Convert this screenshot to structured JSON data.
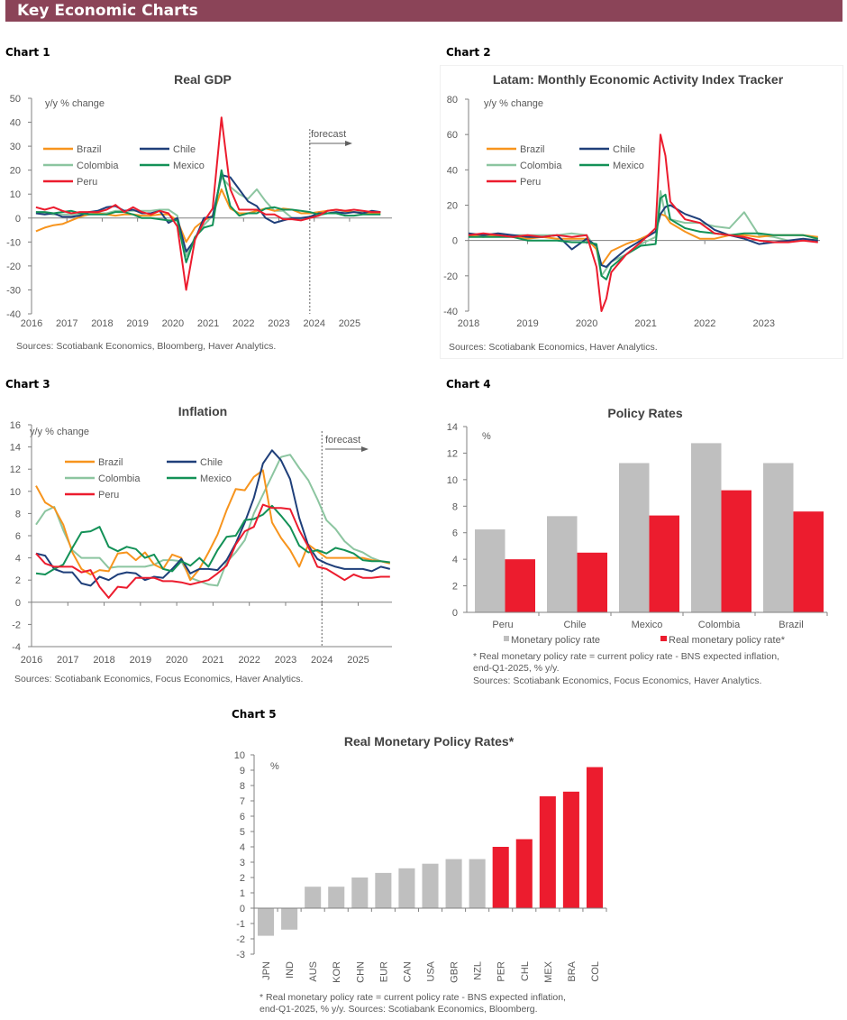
{
  "header": {
    "title": "Key Economic Charts",
    "color": "#8B4458"
  },
  "colors": {
    "Brazil": "#F7941D",
    "Chile": "#1F3F7A",
    "Colombia": "#8CC5A0",
    "Mexico": "#139157",
    "Peru": "#EC1C2E",
    "grey_bar": "#BFBFBF",
    "red_bar": "#EC1C2E"
  },
  "chart_labels": [
    "Chart 1",
    "Chart 2",
    "Chart 3",
    "Chart 4",
    "Chart 5"
  ],
  "chart_data": [
    {
      "type": "line",
      "title": "Real GDP",
      "ylabel": "y/y % change",
      "ylim": [
        -40,
        50
      ],
      "yticks": [
        "50",
        "40",
        "30",
        "20",
        "10",
        "0",
        "-10",
        "-20",
        "-30",
        "-40"
      ],
      "xticks": [
        "2016",
        "2017",
        "2018",
        "2019",
        "2020",
        "2021",
        "2022",
        "2023",
        "2024",
        "2025"
      ],
      "forecast_label": "forecast",
      "forecast_start": "2023-Q4",
      "source": "Sources: Scotiabank Economics, Bloomberg, Haver Analytics.",
      "x": [
        "2016-Q1",
        "2016-Q2",
        "2016-Q3",
        "2016-Q4",
        "2017-Q1",
        "2017-Q2",
        "2017-Q3",
        "2017-Q4",
        "2018-Q1",
        "2018-Q2",
        "2018-Q3",
        "2018-Q4",
        "2019-Q1",
        "2019-Q2",
        "2019-Q3",
        "2019-Q4",
        "2020-Q1",
        "2020-Q2",
        "2020-Q3",
        "2020-Q4",
        "2021-Q1",
        "2021-Q2",
        "2021-Q3",
        "2021-Q4",
        "2022-Q1",
        "2022-Q2",
        "2022-Q3",
        "2022-Q4",
        "2023-Q1",
        "2023-Q2",
        "2023-Q3",
        "2023-Q4",
        "2024-Q1",
        "2024-Q2",
        "2024-Q3",
        "2024-Q4",
        "2025-Q1",
        "2025-Q2",
        "2025-Q3",
        "2025-Q4"
      ],
      "series": [
        {
          "name": "Brazil",
          "values": [
            -5.5,
            -4,
            -3,
            -2.5,
            -1,
            0.5,
            1.5,
            2,
            1.5,
            1,
            1.5,
            1.5,
            1,
            1,
            1.5,
            1.5,
            -1,
            -10,
            -4,
            -1,
            1,
            12,
            4,
            2,
            2,
            3,
            4,
            3,
            4,
            3.5,
            2,
            2,
            2.5,
            3,
            3.5,
            3,
            2.5,
            2,
            2,
            2
          ]
        },
        {
          "name": "Chile",
          "values": [
            2,
            1.5,
            2,
            0.5,
            0.5,
            1,
            2.5,
            3,
            4.5,
            5,
            3,
            3.5,
            2,
            2,
            3,
            -2,
            0,
            -14,
            -9,
            0,
            0.5,
            18,
            17,
            12,
            7,
            5,
            0,
            -2,
            -1,
            0,
            0,
            0.5,
            2,
            2,
            2.5,
            2,
            2.5,
            2,
            3,
            2.5
          ]
        },
        {
          "name": "Colombia",
          "values": [
            2.5,
            2,
            1.5,
            1.5,
            1.5,
            1.5,
            2,
            2,
            2,
            3,
            3,
            3,
            3,
            3,
            3.5,
            3.5,
            1,
            -16,
            -8,
            -3,
            1,
            17,
            13,
            10,
            8,
            12,
            7,
            3,
            3,
            0,
            -0.5,
            0.5,
            1,
            2,
            2,
            2.5,
            2.5,
            2.5,
            2.5,
            2.5
          ]
        },
        {
          "name": "Mexico",
          "values": [
            2.5,
            2.5,
            2,
            2.5,
            3,
            2,
            1.5,
            1.5,
            1.5,
            2.5,
            2.5,
            1.5,
            0,
            0,
            -0.5,
            -1,
            -1,
            -18.5,
            -8,
            -4,
            -3,
            20,
            5,
            1,
            2,
            2,
            4,
            4.5,
            3.5,
            3.5,
            3,
            2.5,
            1.5,
            2,
            2,
            1,
            1,
            1.5,
            1.5,
            1.5
          ]
        },
        {
          "name": "Peru",
          "values": [
            4.5,
            3.5,
            4.5,
            3,
            2,
            2.5,
            2.5,
            2.5,
            3.5,
            5.5,
            2.5,
            4.5,
            2.5,
            1.5,
            3,
            2,
            -3.5,
            -30,
            -9,
            -1.5,
            4,
            42,
            12,
            3.5,
            3.5,
            3.5,
            1.5,
            1.5,
            -0.5,
            -0.5,
            -1,
            0,
            1,
            3,
            3.5,
            3,
            3.5,
            3,
            2.5,
            2.5
          ]
        }
      ]
    },
    {
      "type": "line",
      "title": "Latam: Monthly Economic Activity Index Tracker",
      "ylabel": "y/y % change",
      "ylim": [
        -40,
        80
      ],
      "yticks": [
        "80",
        "60",
        "40",
        "20",
        "0",
        "-20",
        "-40"
      ],
      "xticks": [
        "2018",
        "2019",
        "2020",
        "2021",
        "2022",
        "2023"
      ],
      "source": "Sources: Scotiabank Economics, Haver Analytics.",
      "x": [
        "2018-01",
        "2018-04",
        "2018-07",
        "2018-10",
        "2019-01",
        "2019-04",
        "2019-07",
        "2019-10",
        "2020-01",
        "2020-03",
        "2020-04",
        "2020-05",
        "2020-06",
        "2020-09",
        "2020-12",
        "2021-03",
        "2021-04",
        "2021-05",
        "2021-06",
        "2021-09",
        "2021-12",
        "2022-03",
        "2022-06",
        "2022-09",
        "2022-12",
        "2023-03",
        "2023-06",
        "2023-09",
        "2023-12"
      ],
      "series": [
        {
          "name": "Brazil",
          "values": [
            3,
            2,
            3,
            2,
            1,
            2,
            1,
            1,
            1,
            -5,
            -14,
            -10,
            -6,
            -2,
            1,
            5,
            15,
            14,
            10,
            5,
            1,
            1,
            3,
            3,
            2,
            3,
            3,
            3,
            2
          ]
        },
        {
          "name": "Chile",
          "values": [
            4,
            3,
            4,
            3,
            2,
            2,
            3,
            -5,
            1,
            -3,
            -14,
            -15,
            -12,
            -5,
            0,
            5,
            15,
            19,
            20,
            15,
            12,
            6,
            3,
            1,
            -2,
            -1,
            0,
            1,
            0
          ]
        },
        {
          "name": "Colombia",
          "values": [
            2,
            3,
            3,
            3,
            3,
            3,
            3,
            4,
            3,
            -5,
            -20,
            -16,
            -12,
            -8,
            -2,
            2,
            28,
            14,
            12,
            10,
            10,
            8,
            7,
            16,
            3,
            2,
            0,
            0,
            1
          ]
        },
        {
          "name": "Mexico",
          "values": [
            2,
            2,
            2,
            2,
            0,
            0,
            0,
            -1,
            -1,
            -2,
            -20,
            -22,
            -15,
            -8,
            -3,
            -2,
            24,
            26,
            12,
            7,
            5,
            4,
            3,
            4,
            4,
            3,
            3,
            3,
            1
          ]
        },
        {
          "name": "Peru",
          "values": [
            3,
            4,
            3,
            2,
            3,
            2,
            3,
            2,
            3,
            -15,
            -40,
            -33,
            -18,
            -8,
            -1,
            7,
            60,
            48,
            22,
            12,
            10,
            4,
            3,
            2,
            0,
            -1,
            -1,
            0,
            -1
          ]
        }
      ]
    },
    {
      "type": "line",
      "title": "Inflation",
      "ylabel": "y/y % change",
      "ylim": [
        -4,
        16
      ],
      "yticks": [
        "16",
        "14",
        "12",
        "10",
        "8",
        "6",
        "4",
        "2",
        "0",
        "-2",
        "-4"
      ],
      "xticks": [
        "2016",
        "2017",
        "2018",
        "2019",
        "2020",
        "2021",
        "2022",
        "2023",
        "2024",
        "2025"
      ],
      "forecast_label": "forecast",
      "forecast_start": "2024-01",
      "source": "Sources: Scotiabank Economics, Focus Economics, Haver Analytics.",
      "x": [
        "2016-Q1",
        "2016-Q2",
        "2016-Q3",
        "2016-Q4",
        "2017-Q1",
        "2017-Q2",
        "2017-Q3",
        "2017-Q4",
        "2018-Q1",
        "2018-Q2",
        "2018-Q3",
        "2018-Q4",
        "2019-Q1",
        "2019-Q2",
        "2019-Q3",
        "2019-Q4",
        "2020-Q1",
        "2020-Q2",
        "2020-Q3",
        "2020-Q4",
        "2021-Q1",
        "2021-Q2",
        "2021-Q3",
        "2021-Q4",
        "2022-Q1",
        "2022-Q2",
        "2022-Q3",
        "2022-Q4",
        "2023-Q1",
        "2023-Q2",
        "2023-Q3",
        "2023-Q4",
        "2024-Q1",
        "2024-Q2",
        "2024-Q3",
        "2024-Q4",
        "2025-Q1",
        "2025-Q2",
        "2025-Q3",
        "2025-Q4"
      ],
      "series": [
        {
          "name": "Brazil",
          "values": [
            10.5,
            9,
            8.5,
            7,
            4.5,
            3,
            2.5,
            2.9,
            2.8,
            4.4,
            4.5,
            3.8,
            4.5,
            3.4,
            3,
            4.3,
            4,
            2,
            3,
            4.5,
            6.1,
            8.3,
            10.2,
            10.1,
            11.3,
            11.9,
            7.2,
            5.8,
            4.7,
            3.2,
            5.2,
            4.6,
            4,
            4,
            4,
            4,
            4,
            3.8,
            3.7,
            3.5
          ]
        },
        {
          "name": "Chile",
          "values": [
            4.4,
            4.2,
            3,
            2.7,
            2.7,
            1.7,
            1.5,
            2.3,
            2,
            2.5,
            2.7,
            2.6,
            2,
            2.3,
            2.2,
            3,
            3.9,
            2.6,
            3,
            3,
            2.9,
            3.8,
            5.3,
            7.2,
            9.4,
            12.5,
            13.7,
            12.8,
            11.1,
            7.6,
            5.1,
            3.9,
            3.5,
            3.2,
            3,
            3,
            3,
            2.8,
            3.2,
            3
          ]
        },
        {
          "name": "Colombia",
          "values": [
            7,
            8.2,
            8.6,
            6.5,
            4.7,
            4,
            4,
            4,
            3.1,
            3.2,
            3.2,
            3.2,
            3.2,
            3.4,
            3.8,
            3.8,
            3.7,
            2.2,
            1.9,
            1.6,
            1.5,
            3.6,
            4.5,
            5.6,
            8,
            9.7,
            11.4,
            13.1,
            13.3,
            12.1,
            11,
            9.3,
            7.4,
            6.6,
            5.5,
            4.8,
            4.5,
            4,
            3.7,
            3.5
          ]
        },
        {
          "name": "Mexico",
          "values": [
            2.6,
            2.5,
            3,
            3.4,
            4.9,
            6.3,
            6.4,
            6.8,
            5,
            4.6,
            5,
            4.8,
            4,
            4.3,
            3,
            2.8,
            3.7,
            3.3,
            4,
            3.2,
            4.7,
            5.9,
            6,
            7.4,
            7.5,
            7.9,
            8.7,
            7.8,
            6.8,
            5.1,
            4.5,
            4.7,
            4.4,
            4.9,
            4.7,
            4.4,
            3.8,
            3.7,
            3.7,
            3.6
          ]
        },
        {
          "name": "Peru",
          "values": [
            4.4,
            3.5,
            3.2,
            3.2,
            3.2,
            2.7,
            2.9,
            1.4,
            0.4,
            1.4,
            1.3,
            2.2,
            2.2,
            2.2,
            1.9,
            1.9,
            1.8,
            1.6,
            1.8,
            2,
            2.6,
            3.3,
            5.2,
            6.4,
            6.8,
            8.8,
            8.5,
            8.5,
            8.4,
            6.5,
            5,
            3.2,
            3,
            2.5,
            2,
            2.5,
            2.2,
            2.2,
            2.3,
            2.3
          ]
        }
      ]
    },
    {
      "type": "bar",
      "title": "Policy Rates",
      "ylabel": "%",
      "ylim": [
        0,
        14
      ],
      "yticks": [
        "14",
        "12",
        "10",
        "8",
        "6",
        "4",
        "2",
        "0"
      ],
      "categories": [
        "Peru",
        "Chile",
        "Mexico",
        "Colombia",
        "Brazil"
      ],
      "series": [
        {
          "name": "Monetary policy rate",
          "values": [
            6.25,
            7.25,
            11.25,
            12.75,
            11.25
          ]
        },
        {
          "name": "Real monetary policy rate*",
          "values": [
            4.0,
            4.5,
            7.3,
            9.2,
            7.6
          ]
        }
      ],
      "footnote_1": "* Real monetary policy rate = current policy rate - BNS expected inflation,",
      "footnote_2": "end-Q1-2025,  % y/y.",
      "source": "Sources: Scotiabank Economics, Focus Economics, Haver Analytics."
    },
    {
      "type": "bar",
      "title": "Real Monetary Policy Rates*",
      "ylabel": "%",
      "ylim": [
        -3,
        10
      ],
      "yticks": [
        "10",
        "9",
        "8",
        "7",
        "6",
        "5",
        "4",
        "3",
        "2",
        "1",
        "0",
        "-1",
        "-2",
        "-3"
      ],
      "categories": [
        "JPN",
        "IND",
        "AUS",
        "KOR",
        "CHN",
        "EUR",
        "CAN",
        "USA",
        "GBR",
        "NZL",
        "PER",
        "CHL",
        "MEX",
        "BRA",
        "COL"
      ],
      "values": [
        -1.8,
        -1.4,
        1.4,
        1.4,
        2.0,
        2.3,
        2.6,
        2.9,
        3.2,
        3.2,
        4.0,
        4.5,
        7.3,
        7.6,
        9.2
      ],
      "highlighted": [
        "PER",
        "CHL",
        "MEX",
        "BRA",
        "COL"
      ],
      "footnote_1": "* Real monetary policy rate = current policy rate - BNS expected inflation,",
      "footnote_2": "end-Q1-2025,  % y/y. Sources: Scotiabank Economics, Bloomberg."
    }
  ]
}
